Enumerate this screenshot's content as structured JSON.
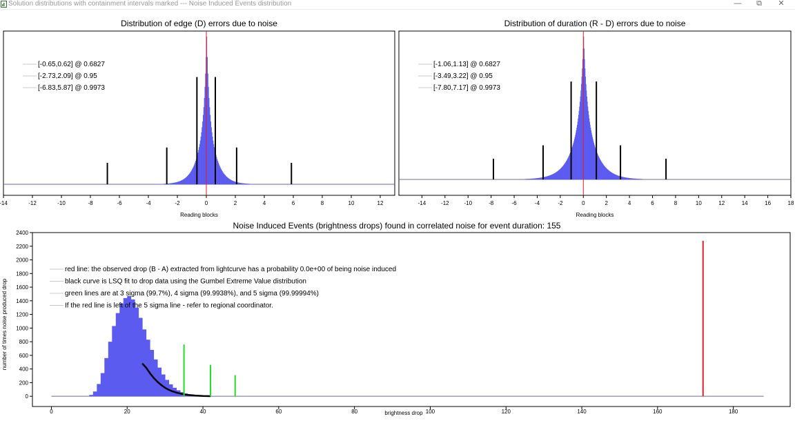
{
  "window": {
    "title": "Solution distributions with containment intervals marked --- Noise Induced Events distribution",
    "minimize_glyph": "—",
    "restore_glyph": "⧉",
    "close_glyph": "✕"
  },
  "colors": {
    "histogram": "#5b5bf0",
    "observed_line": "#e02020",
    "sigma_lines": "#22dd22",
    "fit_curve": "#000000",
    "marker_lines": "#000000"
  },
  "chart_data": [
    {
      "type": "bar",
      "title": "Distribution of edge (D) errors due to noise",
      "xlabel": "Reading blocks",
      "xlim": [
        -14,
        13
      ],
      "xticks": [
        -14,
        -12,
        -10,
        -8,
        -6,
        -4,
        -2,
        0,
        2,
        4,
        6,
        8,
        10,
        12
      ],
      "legend_position": "top-left",
      "legend": [
        "[-0.65,0.62] @ 0.6827",
        "[-2.73,2.09] @ 0.95",
        "[-6.83,5.87] @ 0.9973"
      ],
      "histogram": {
        "center": 0,
        "peak_relative": 1.0,
        "scale_left": 0.55,
        "scale_right": 0.55
      },
      "intervals": [
        {
          "lo": -0.65,
          "hi": 0.62,
          "level": 0.6827,
          "marker_height": 0.7
        },
        {
          "lo": -2.73,
          "hi": 2.09,
          "level": 0.95,
          "marker_height": 0.24
        },
        {
          "lo": -6.83,
          "hi": 5.87,
          "level": 0.9973,
          "marker_height": 0.14
        }
      ],
      "observed_value": 0
    },
    {
      "type": "bar",
      "title": "Distribution of duration (R - D) errors due to noise",
      "xlabel": "Reading blocks",
      "xlim": [
        -16,
        18
      ],
      "xticks": [
        -14,
        -12,
        -10,
        -8,
        -6,
        -4,
        -2,
        0,
        2,
        4,
        6,
        8,
        10,
        12,
        14,
        16,
        18
      ],
      "legend_position": "top-left",
      "legend": [
        "[-1.06,1.13] @ 0.6827",
        "[-3.49,3.22] @ 0.95",
        "[-7.80,7.17] @ 0.9973"
      ],
      "histogram": {
        "center": 0,
        "peak_relative": 1.0,
        "scale_left": 0.95,
        "scale_right": 0.95
      },
      "intervals": [
        {
          "lo": -1.06,
          "hi": 1.13,
          "level": 0.6827,
          "marker_height": 0.66
        },
        {
          "lo": -3.49,
          "hi": 3.22,
          "level": 0.95,
          "marker_height": 0.23
        },
        {
          "lo": -7.8,
          "hi": 7.17,
          "level": 0.9973,
          "marker_height": 0.14
        }
      ],
      "observed_value": 0
    },
    {
      "type": "bar",
      "title": "Noise Induced Events (brightness drops) found in correlated noise for event duration: 155",
      "xlabel": "brightness drop",
      "ylabel": "number of times noise produced drop",
      "xlim": [
        -5,
        195
      ],
      "ylim": [
        -150,
        2400
      ],
      "xticks": [
        0,
        20,
        40,
        60,
        80,
        100,
        120,
        140,
        160,
        180
      ],
      "yticks": [
        0,
        200,
        400,
        600,
        800,
        1000,
        1200,
        1400,
        1600,
        1800,
        2000,
        2200,
        2400
      ],
      "legend_position": "top-left",
      "legend": [
        "red line: the observed drop (B - A) extracted from lightcurve has a probability 0.0e+00 of being noise induced",
        "black curve is LSQ fit to drop data using the Gumbel Extreme Value distribution",
        "green lines are at 3 sigma (99.7%), 4 sigma (99.9938%), and 5 sigma (99.99994%)",
        "If the red line is left of the 5 sigma line - refer to regional coordinator."
      ],
      "histogram": {
        "bin_start": 10,
        "bin_width": 1,
        "counts": [
          20,
          70,
          180,
          340,
          560,
          800,
          1030,
          1220,
          1360,
          1440,
          1470,
          1420,
          1300,
          1150,
          980,
          830,
          680,
          540,
          420,
          320,
          240,
          175,
          125,
          88,
          60,
          40,
          27,
          18,
          12,
          8,
          5,
          3,
          2,
          1
        ]
      },
      "fit_curve": {
        "x": [
          24,
          25,
          26,
          27,
          28,
          29,
          30,
          31,
          32,
          33,
          34,
          35,
          36,
          38,
          40,
          42
        ],
        "y": [
          480,
          420,
          340,
          270,
          212,
          165,
          125,
          95,
          72,
          54,
          40,
          29,
          21,
          11,
          5,
          2
        ]
      },
      "sigma_lines": [
        {
          "label": "3 sigma",
          "x": 35,
          "y": 760
        },
        {
          "label": "4 sigma",
          "x": 42,
          "y": 460
        },
        {
          "label": "5 sigma",
          "x": 48.5,
          "y": 310
        }
      ],
      "observed_drop": {
        "x": 172,
        "y": 2280
      }
    }
  ]
}
